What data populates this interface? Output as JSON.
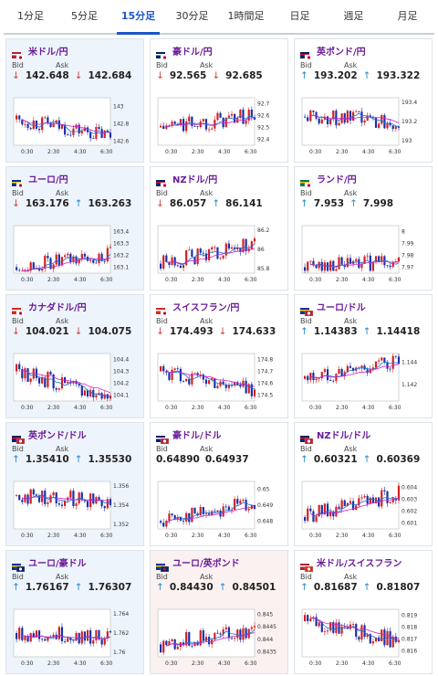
{
  "tabs": [
    {
      "label": "1分足"
    },
    {
      "label": "5分足"
    },
    {
      "label": "15分足"
    },
    {
      "label": "30分足"
    },
    {
      "label": "1時間足"
    },
    {
      "label": "日足"
    },
    {
      "label": "週足"
    },
    {
      "label": "月足"
    }
  ],
  "active_tab": 2,
  "labels": {
    "bid": "Bid",
    "ask": "Ask"
  },
  "x_ticks": [
    "0:30",
    "2:30",
    "4:30",
    "6:30"
  ],
  "colors": {
    "up": "#1e8ad6",
    "down": "#d63a3a",
    "pair_name": "#6a1b9a",
    "active_tab": "#1a56c8",
    "bull_candle": "#d42020",
    "bear_candle": "#1a2fa8",
    "ma_short": "#1f6fd0",
    "ma_long": "#d020c8"
  },
  "pairs": [
    {
      "name": "米ドル/円",
      "flag": "US-JP",
      "bid": "142.648",
      "bid_dir": "down",
      "ask": "142.684",
      "ask_dir": "down",
      "yticks": [
        "143",
        "142.8",
        "142.6"
      ],
      "ymin": 142.55,
      "ymax": 143.1,
      "start": 142.85,
      "end": 142.66,
      "trend": -0.2,
      "bg": "normal"
    },
    {
      "name": "豪ドル/円",
      "flag": "AU-JP",
      "bid": "92.565",
      "bid_dir": "down",
      "ask": "92.685",
      "ask_dir": "down",
      "yticks": [
        "92.7",
        "92.6",
        "92.5",
        "92.4"
      ],
      "ymin": 92.35,
      "ymax": 92.75,
      "start": 92.5,
      "end": 92.6,
      "trend": 0.1,
      "bg": "normal"
    },
    {
      "name": "英ポンド/円",
      "flag": "GB-JP",
      "bid": "193.202",
      "bid_dir": "up",
      "ask": "193.322",
      "ask_dir": "up",
      "yticks": [
        "193.4",
        "193.2",
        "193"
      ],
      "ymin": 192.95,
      "ymax": 193.45,
      "start": 193.25,
      "end": 193.2,
      "trend": -0.05,
      "bg": "normal"
    },
    {
      "name": "ユーロ/円",
      "flag": "EU-JP",
      "bid": "163.176",
      "bid_dir": "down",
      "ask": "163.263",
      "ask_dir": "up",
      "yticks": [
        "163.4",
        "163.3",
        "163.2",
        "163.1"
      ],
      "ymin": 163.05,
      "ymax": 163.45,
      "start": 163.1,
      "end": 163.2,
      "trend": 0.1,
      "bg": "normal"
    },
    {
      "name": "NZドル/円",
      "flag": "NZ-JP",
      "bid": "86.057",
      "bid_dir": "down",
      "ask": "86.141",
      "ask_dir": "up",
      "yticks": [
        "86.2",
        "86",
        "85.8"
      ],
      "ymin": 85.75,
      "ymax": 86.25,
      "start": 85.85,
      "end": 86.05,
      "trend": 0.2,
      "bg": "normal"
    },
    {
      "name": "ランド/円",
      "flag": "ZA-JP",
      "bid": "7.953",
      "bid_dir": "up",
      "ask": "7.998",
      "ask_dir": "up",
      "yticks": [
        "8",
        "7.99",
        "7.98",
        "7.97"
      ],
      "ymin": 7.965,
      "ymax": 8.005,
      "start": 7.97,
      "end": 7.975,
      "trend": 0.005,
      "bg": "normal"
    },
    {
      "name": "カナダドル/円",
      "flag": "CA-JP",
      "bid": "104.021",
      "bid_dir": "down",
      "ask": "104.075",
      "ask_dir": "down",
      "yticks": [
        "104.4",
        "104.3",
        "104.2",
        "104.1"
      ],
      "ymin": 104.05,
      "ymax": 104.45,
      "start": 104.3,
      "end": 104.08,
      "trend": -0.22,
      "bg": "normal"
    },
    {
      "name": "スイスフラン/円",
      "flag": "CH-JP",
      "bid": "174.493",
      "bid_dir": "down",
      "ask": "174.633",
      "ask_dir": "down",
      "yticks": [
        "174.8",
        "174.7",
        "174.6",
        "174.5"
      ],
      "ymin": 174.45,
      "ymax": 174.85,
      "start": 174.7,
      "end": 174.55,
      "trend": -0.15,
      "bg": "normal"
    },
    {
      "name": "ユーロ/ドル",
      "flag": "EU-US",
      "bid": "1.14383",
      "bid_dir": "up",
      "ask": "1.14418",
      "ask_dir": "up",
      "yticks": [
        "1.144",
        "1.142"
      ],
      "ymin": 1.1405,
      "ymax": 1.1448,
      "start": 1.1425,
      "end": 1.1441,
      "trend": 0.0016,
      "bg": "normal"
    },
    {
      "name": "英ポンド/ドル",
      "flag": "GB-US",
      "bid": "1.35410",
      "bid_dir": "up",
      "ask": "1.35530",
      "ask_dir": "up",
      "yticks": [
        "1.356",
        "1.354",
        "1.352"
      ],
      "ymin": 1.3515,
      "ymax": 1.3565,
      "start": 1.355,
      "end": 1.3545,
      "trend": -0.0005,
      "bg": "normal"
    },
    {
      "name": "豪ドル/ドル",
      "flag": "AU-US",
      "bid": "0.64890",
      "bid_dir": "none",
      "ask": "0.64937",
      "ask_dir": "none",
      "yticks": [
        "0.65",
        "0.649",
        "0.648"
      ],
      "ymin": 0.6475,
      "ymax": 0.6505,
      "start": 0.648,
      "end": 0.6492,
      "trend": 0.0012,
      "bg": "normal"
    },
    {
      "name": "NZドル/ドル",
      "flag": "NZ-US",
      "bid": "0.60321",
      "bid_dir": "up",
      "ask": "0.60369",
      "ask_dir": "up",
      "yticks": [
        "0.604",
        "0.603",
        "0.602",
        "0.601"
      ],
      "ymin": 0.6005,
      "ymax": 0.6045,
      "start": 0.6015,
      "end": 0.6035,
      "trend": 0.002,
      "bg": "normal"
    },
    {
      "name": "ユーロ/豪ドル",
      "flag": "EU-AU",
      "bid": "1.76167",
      "bid_dir": "up",
      "ask": "1.76307",
      "ask_dir": "up",
      "yticks": [
        "1.764",
        "1.762",
        "1.76"
      ],
      "ymin": 1.7595,
      "ymax": 1.7645,
      "start": 1.762,
      "end": 1.7615,
      "trend": -0.0005,
      "bg": "normal"
    },
    {
      "name": "ユーロ/英ポンド",
      "flag": "EU-GB",
      "bid": "0.84430",
      "bid_dir": "up",
      "ask": "0.84501",
      "ask_dir": "up",
      "yticks": [
        "0.845",
        "0.8445",
        "0.844",
        "0.8435"
      ],
      "ymin": 0.8433,
      "ymax": 0.8452,
      "start": 0.8438,
      "end": 0.8444,
      "trend": 0.0006,
      "bg": "pink"
    },
    {
      "name": "米ドル/スイスフラン",
      "flag": "US-CH",
      "bid": "0.81687",
      "bid_dir": "up",
      "ask": "0.81807",
      "ask_dir": "up",
      "yticks": [
        "0.819",
        "0.818",
        "0.817",
        "0.816"
      ],
      "ymin": 0.8155,
      "ymax": 0.8195,
      "start": 0.8185,
      "end": 0.8168,
      "trend": -0.0017,
      "bg": "normal"
    }
  ]
}
